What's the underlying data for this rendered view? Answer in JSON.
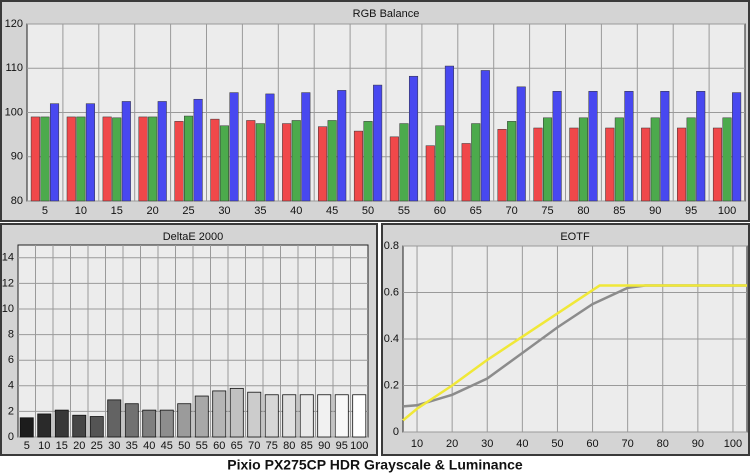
{
  "caption": "Pixio PX275CP HDR Grayscale & Luminance",
  "chart_data": [
    {
      "type": "bar",
      "title": "RGB Balance",
      "categories": [
        5,
        10,
        15,
        20,
        25,
        30,
        35,
        40,
        45,
        50,
        55,
        60,
        65,
        70,
        75,
        80,
        85,
        90,
        95,
        100
      ],
      "series": [
        {
          "color": "#f0484a",
          "values": [
            99,
            99,
            99,
            99,
            98,
            98.5,
            98.2,
            97.5,
            96.8,
            95.8,
            94.5,
            92.5,
            93,
            96.2,
            96.5,
            96.5,
            96.5,
            96.5,
            96.5,
            96.5
          ]
        },
        {
          "color": "#4caa4c",
          "values": [
            99,
            99,
            98.8,
            99,
            99.2,
            97,
            97.5,
            98.2,
            98.2,
            98,
            97.5,
            97,
            97.5,
            98,
            98.8,
            98.8,
            98.8,
            98.8,
            98.8,
            98.8
          ]
        },
        {
          "color": "#4848f0",
          "values": [
            102,
            102,
            102.5,
            102.5,
            103,
            104.5,
            104.2,
            104.5,
            105,
            106.2,
            108.2,
            110.5,
            109.5,
            105.8,
            104.8,
            104.8,
            104.8,
            104.8,
            104.8,
            104.5
          ]
        }
      ],
      "ylim": [
        80,
        120
      ],
      "yticks": [
        80,
        90,
        100,
        110,
        120
      ],
      "grid": true
    },
    {
      "type": "bar",
      "title": "DeltaE 2000",
      "categories": [
        5,
        10,
        15,
        20,
        25,
        30,
        35,
        40,
        45,
        50,
        55,
        60,
        65,
        70,
        75,
        80,
        85,
        90,
        95,
        100
      ],
      "values": [
        1.5,
        1.8,
        2.1,
        1.7,
        1.6,
        2.9,
        2.6,
        2.1,
        2.1,
        2.6,
        3.2,
        3.6,
        3.8,
        3.5,
        3.3,
        3.3,
        3.3,
        3.3,
        3.3,
        3.3
      ],
      "colors": [
        "#1c1c1c",
        "#2a2a2a",
        "#383838",
        "#464646",
        "#545454",
        "#636363",
        "#717171",
        "#7f7f7f",
        "#8d8d8d",
        "#9b9b9b",
        "#a8a8a8",
        "#b5b5b5",
        "#c1c1c1",
        "#cccccc",
        "#d6d6d6",
        "#e0e0e0",
        "#e9e9e9",
        "#f1f1f1",
        "#f8f8f8",
        "#ffffff"
      ],
      "ylim": [
        0,
        15
      ],
      "yticks": [
        0,
        2,
        4,
        6,
        8,
        10,
        12,
        14
      ],
      "grid": true
    },
    {
      "type": "line",
      "title": "EOTF",
      "series": [
        {
          "color": "#8c8c8c",
          "x": [
            6,
            10,
            20,
            30,
            40,
            50,
            60,
            70,
            75,
            104
          ],
          "values": [
            0.11,
            0.115,
            0.16,
            0.23,
            0.34,
            0.45,
            0.55,
            0.62,
            0.63,
            0.63
          ]
        },
        {
          "color": "#f0e838",
          "x": [
            6,
            10,
            20,
            30,
            40,
            50,
            60,
            62,
            104
          ],
          "values": [
            0.05,
            0.1,
            0.2,
            0.31,
            0.41,
            0.51,
            0.61,
            0.63,
            0.63
          ]
        }
      ],
      "xlim": [
        6,
        104
      ],
      "xticks": [
        10,
        20,
        30,
        40,
        50,
        60,
        70,
        80,
        90,
        100
      ],
      "ylim": [
        0,
        0.8
      ],
      "yticks": [
        0,
        0.2,
        0.4,
        0.6,
        0.8
      ],
      "grid": true
    }
  ]
}
